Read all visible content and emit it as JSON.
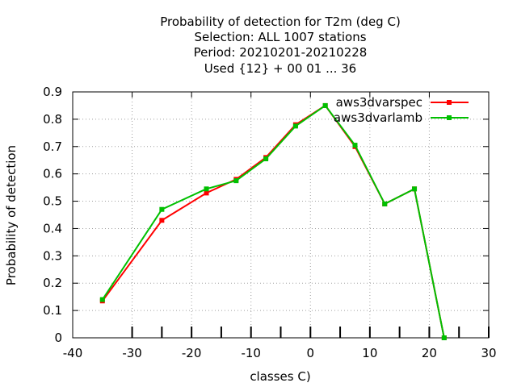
{
  "chart_data": {
    "type": "line",
    "title_lines": [
      "Probability of detection  for T2m (deg C)",
      "Selection: ALL   1007 stations",
      "Period: 20210201-20210228",
      "Used {12} + 00 01 ... 36"
    ],
    "xlabel": "classes C)",
    "ylabel": "Probability of detection",
    "xlim": [
      -40,
      30
    ],
    "ylim": [
      0,
      0.9
    ],
    "xticks": [
      -40,
      -30,
      -20,
      -10,
      0,
      10,
      20,
      30
    ],
    "yticks": [
      0,
      0.1,
      0.2,
      0.3,
      0.4,
      0.5,
      0.6,
      0.7,
      0.8,
      0.9
    ],
    "bottom_tick_marks": [
      -30,
      -25,
      -20,
      -15,
      -10,
      -5,
      0,
      5,
      10,
      15,
      20,
      25,
      30
    ],
    "grid": true,
    "legend_position": "top-right",
    "series": [
      {
        "name": "aws3dvarspec",
        "color": "#ff0000",
        "x": [
          -35,
          -25,
          -17.5,
          -12.5,
          -7.5,
          -2.5,
          2.5,
          7.5,
          12.5,
          17.5,
          22.5
        ],
        "y": [
          0.135,
          0.43,
          0.53,
          0.58,
          0.66,
          0.78,
          0.85,
          0.7,
          0.49,
          0.545,
          0.0
        ]
      },
      {
        "name": "aws3dvarlamb",
        "color": "#00c000",
        "x": [
          -35,
          -25,
          -17.5,
          -12.5,
          -7.5,
          -2.5,
          2.5,
          7.5,
          12.5,
          17.5,
          22.5
        ],
        "y": [
          0.14,
          0.47,
          0.545,
          0.575,
          0.655,
          0.775,
          0.85,
          0.705,
          0.49,
          0.545,
          0.0
        ]
      }
    ]
  }
}
